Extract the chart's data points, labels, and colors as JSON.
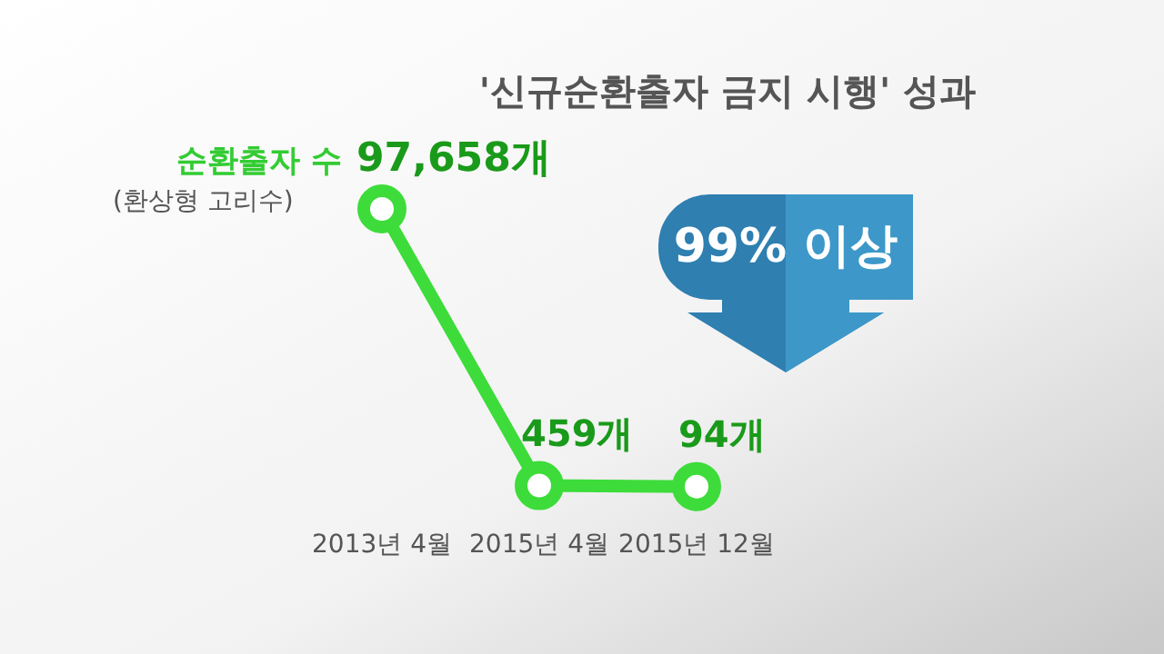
{
  "chart_data": {
    "type": "line",
    "title": "'신규순환출자 금지 시행' 성과",
    "categories": [
      "2013년 4월",
      "2015년 4월",
      "2015년 12월"
    ],
    "series": [
      {
        "name": "순환출자 수",
        "color": "#3ddc3a",
        "values": [
          97658,
          459,
          94
        ],
        "value_labels": [
          "97,658개",
          "459개",
          "94개"
        ]
      }
    ],
    "annotations": [
      "(환상형 고리수)",
      "99% 이상"
    ],
    "marker": "circle",
    "line_style": "solid"
  }
}
